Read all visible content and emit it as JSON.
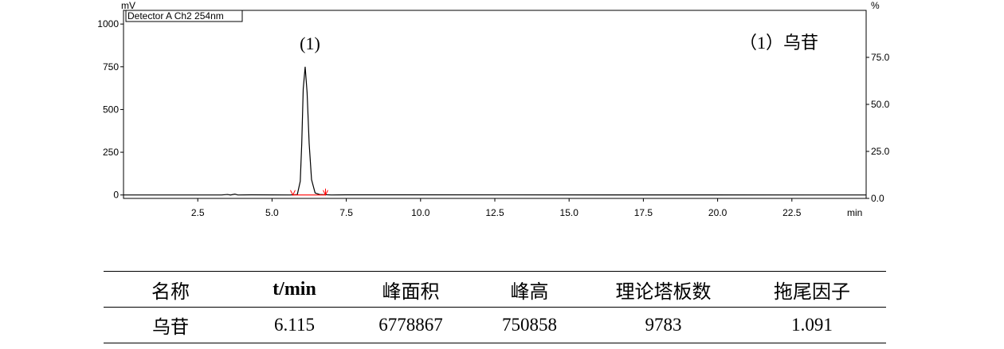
{
  "chart_data": {
    "type": "line",
    "detector_label": "Detector A Ch2 254nm",
    "y_unit_left": "mV",
    "y_unit_right": "%",
    "x_unit": "min",
    "x_ticks": [
      "2.5",
      "5.0",
      "7.5",
      "10.0",
      "12.5",
      "15.0",
      "17.5",
      "20.0",
      "22.5"
    ],
    "y_ticks_left": [
      "0",
      "250",
      "500",
      "750",
      "1000"
    ],
    "y_ticks_right": [
      "0.0",
      "25.0",
      "50.0",
      "75.0"
    ],
    "xlim": [
      0,
      25
    ],
    "ylim_left": [
      -20,
      1080
    ],
    "ylim_right": [
      0,
      100
    ],
    "peak_label": "(1)",
    "legend_label": "（1）乌苷",
    "series": [
      {
        "color": "#000000",
        "points": [
          [
            0.0,
            0
          ],
          [
            3.3,
            0
          ],
          [
            3.5,
            3
          ],
          [
            3.6,
            0
          ],
          [
            3.75,
            5
          ],
          [
            3.85,
            0
          ],
          [
            4.3,
            1
          ],
          [
            5.6,
            0
          ],
          [
            5.85,
            2
          ],
          [
            5.95,
            80
          ],
          [
            6.0,
            300
          ],
          [
            6.05,
            620
          ],
          [
            6.115,
            750
          ],
          [
            6.18,
            600
          ],
          [
            6.25,
            300
          ],
          [
            6.33,
            90
          ],
          [
            6.45,
            12
          ],
          [
            6.6,
            3
          ],
          [
            7.0,
            0
          ],
          [
            7.5,
            1
          ],
          [
            25.0,
            0
          ]
        ]
      }
    ],
    "baseline": {
      "color": "#ff0000",
      "start": 5.7,
      "end": 6.8,
      "value": 0
    }
  },
  "table": {
    "headers": [
      "名称",
      "t/min",
      "峰面积",
      "峰高",
      "理论塔板数",
      "拖尾因子"
    ],
    "rows": [
      [
        "乌苷",
        "6.115",
        "6778867",
        "750858",
        "9783",
        "1.091"
      ]
    ]
  }
}
